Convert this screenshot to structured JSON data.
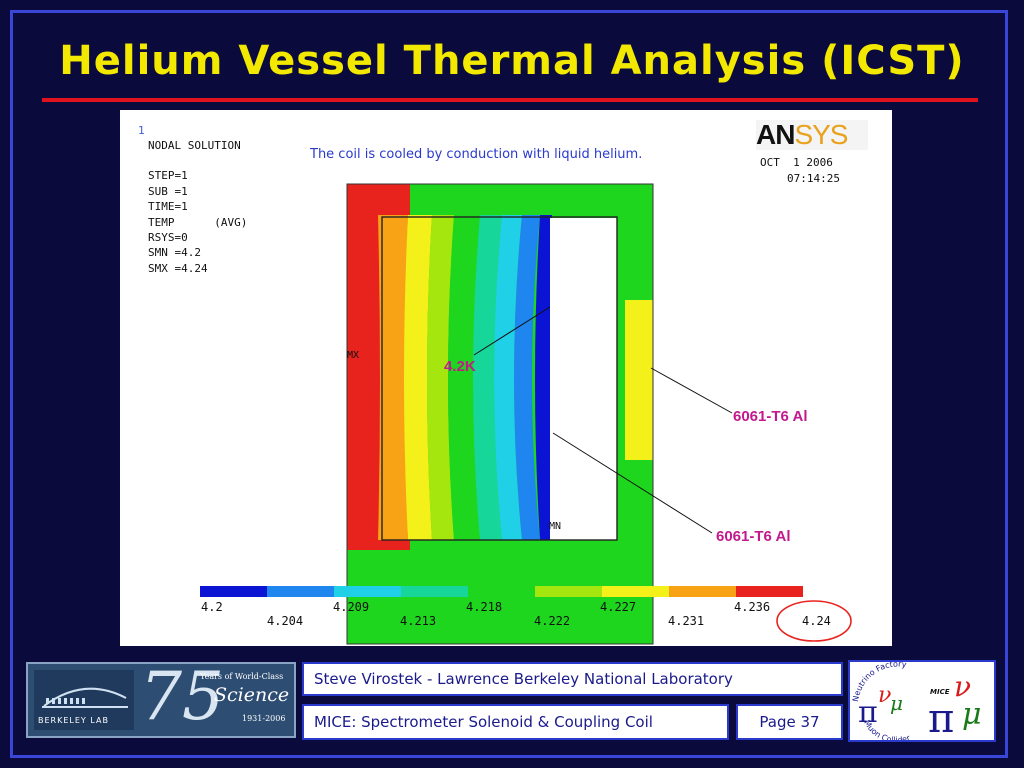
{
  "slide": {
    "title": "Helium Vessel Thermal Analysis (ICST)"
  },
  "figure": {
    "panel_number": "1",
    "nodal_text": [
      "NODAL SOLUTION",
      "",
      "STEP=1",
      "SUB =1",
      "TIME=1",
      "TEMP      (AVG)",
      "RSYS=0",
      "SMN =4.2",
      "SMX =4.24"
    ],
    "caption": "The coil is cooled by conduction with liquid helium.",
    "logo_a": "AN",
    "logo_b": "SYS",
    "date": "OCT  1 2006",
    "time": "07:14:25",
    "mx_label": "MX",
    "mn_label": "MN",
    "callout_temp": "4.2K",
    "callout_material_1": "6061-T6 Al",
    "callout_material_2": "6061-T6 Al",
    "colorbar_colors": [
      "#0a14d2",
      "#1f86f0",
      "#1fd0e6",
      "#16d69a",
      "#1ed61e",
      "#a6e60f",
      "#f4f01a",
      "#f7a315",
      "#e8231e"
    ],
    "ticks_top": [
      "4.2",
      "4.209",
      "4.218",
      "4.227",
      "4.236"
    ],
    "ticks_bottom": [
      "4.204",
      "4.213",
      "4.222",
      "4.231",
      "4.24"
    ]
  },
  "footer": {
    "logo_lab": "BERKELEY LAB",
    "logo_anniv_num": "75",
    "logo_anniv_line1": "Years of World-Class",
    "logo_anniv_line2": "Science",
    "logo_anniv_years": "1931-2006",
    "author": "Steve Virostek - Lawrence Berkeley National Laboratory",
    "project": "MICE: Spectrometer Solenoid & Coupling Coil",
    "page": "Page 37",
    "right_logo_top": "Neutrino Factory",
    "right_logo_bottom": "Muon Collider",
    "right_logo_mice": "MICE"
  }
}
